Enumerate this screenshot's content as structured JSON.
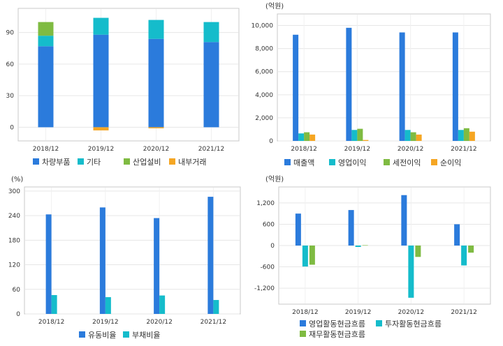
{
  "chart_data": [
    {
      "type": "bar",
      "stacked": true,
      "categories": [
        "2018/12",
        "2019/12",
        "2020/12",
        "2021/12"
      ],
      "ylim": [
        -13,
        113
      ],
      "yticks": [
        "0",
        "30",
        "60",
        "90"
      ],
      "series": [
        {
          "name": "차량부품",
          "color": "#2b7bdc",
          "values": [
            77,
            88,
            84,
            81
          ]
        },
        {
          "name": "기타",
          "color": "#15bccb",
          "values": [
            10,
            16,
            18,
            19
          ]
        },
        {
          "name": "산업설비",
          "color": "#7fbb42",
          "values": [
            13,
            0,
            0,
            0
          ]
        },
        {
          "name": "내부거래",
          "color": "#f5a623",
          "values": [
            0,
            -3,
            -1,
            0
          ]
        }
      ]
    },
    {
      "type": "bar",
      "unit": "(억원)",
      "categories": [
        "2018/12",
        "2019/12",
        "2020/12",
        "2021/12"
      ],
      "ylim": [
        0,
        11000
      ],
      "yticks": [
        "0",
        "2,000",
        "4,000",
        "6,000",
        "8,000",
        "10,000"
      ],
      "series": [
        {
          "name": "매출액",
          "color": "#2b7bdc",
          "values": [
            9200,
            9800,
            9400,
            9400
          ]
        },
        {
          "name": "영업이익",
          "color": "#15bccb",
          "values": [
            650,
            950,
            950,
            950
          ]
        },
        {
          "name": "세전이익",
          "color": "#7fbb42",
          "values": [
            750,
            1050,
            750,
            1100
          ]
        },
        {
          "name": "순이익",
          "color": "#f5a623",
          "values": [
            550,
            80,
            550,
            800
          ]
        }
      ]
    },
    {
      "type": "bar",
      "unit": "(%)",
      "categories": [
        "2018/12",
        "2019/12",
        "2020/12",
        "2021/12"
      ],
      "ylim": [
        0,
        310
      ],
      "yticks": [
        "0",
        "60",
        "120",
        "180",
        "240",
        "300"
      ],
      "series": [
        {
          "name": "유동비율",
          "color": "#2b7bdc",
          "values": [
            243,
            260,
            234,
            286
          ]
        },
        {
          "name": "부채비율",
          "color": "#15bccb",
          "values": [
            46,
            41,
            45,
            34
          ]
        }
      ]
    },
    {
      "type": "bar",
      "unit": "(억원)",
      "categories": [
        "2018/12",
        "2019/12",
        "2020/12",
        "2021/12"
      ],
      "ylim": [
        -1650,
        1650
      ],
      "yticks": [
        "-1,200",
        "-600",
        "0",
        "600",
        "1,200"
      ],
      "series": [
        {
          "name": "영업활동현금흐름",
          "color": "#2b7bdc",
          "values": [
            900,
            1000,
            1420,
            600
          ]
        },
        {
          "name": "투자활동현금흐름",
          "color": "#15bccb",
          "values": [
            -590,
            -40,
            -1470,
            -560
          ]
        },
        {
          "name": "재무활동현금흐름",
          "color": "#7fbb42",
          "values": [
            -540,
            10,
            -320,
            -200
          ]
        }
      ]
    }
  ]
}
